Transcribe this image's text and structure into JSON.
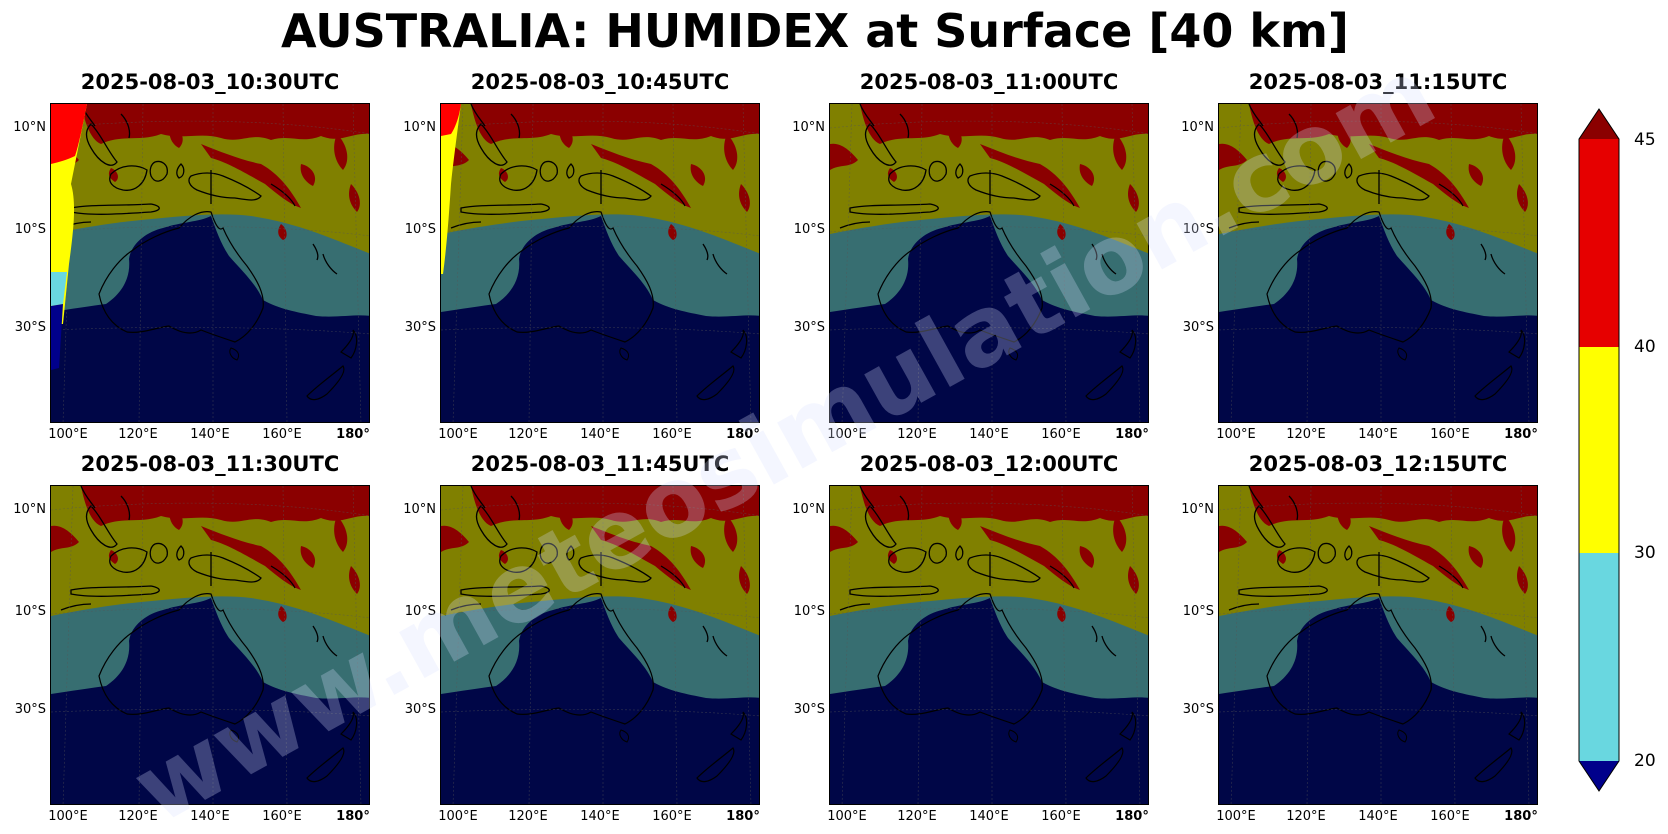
{
  "title": "AUSTRALIA: HUMIDEX at Surface [40 km]",
  "watermark": "www.meteosimulation.com",
  "panels": [
    {
      "title": "2025-08-03_10:30UTC",
      "variant": "first"
    },
    {
      "title": "2025-08-03_10:45UTC",
      "variant": "second"
    },
    {
      "title": "2025-08-03_11:00UTC",
      "variant": "normal"
    },
    {
      "title": "2025-08-03_11:15UTC",
      "variant": "normal"
    },
    {
      "title": "2025-08-03_11:30UTC",
      "variant": "normal"
    },
    {
      "title": "2025-08-03_11:45UTC",
      "variant": "normal"
    },
    {
      "title": "2025-08-03_12:00UTC",
      "variant": "normal"
    },
    {
      "title": "2025-08-03_12:15UTC",
      "variant": "normal"
    }
  ],
  "lat_labels": [
    "10°N",
    "10°S",
    "30°S"
  ],
  "lon_labels": [
    "100°E",
    "120°E",
    "140°E",
    "160°E",
    "180°"
  ],
  "colorbar": {
    "ticks": [
      "20",
      "30",
      "40",
      "45"
    ],
    "levels": [
      {
        "from": 20,
        "to": 30,
        "color": "#69d7e0"
      },
      {
        "from": 30,
        "to": 40,
        "color": "#ffff00"
      },
      {
        "from": 40,
        "to": 45,
        "color": "#e60000"
      }
    ],
    "under_color": "#00008b",
    "over_color": "#8b0000"
  },
  "map_colors": {
    "humidex_below_20": "#000647",
    "humidex_20_30": "#376e71",
    "humidex_30_40": "#808000",
    "humidex_40_45": "#8b0000",
    "raw_yellow": "#ffff00",
    "raw_red": "#ff0000",
    "raw_cyan": "#69d7e0",
    "raw_blue": "#00008b"
  }
}
